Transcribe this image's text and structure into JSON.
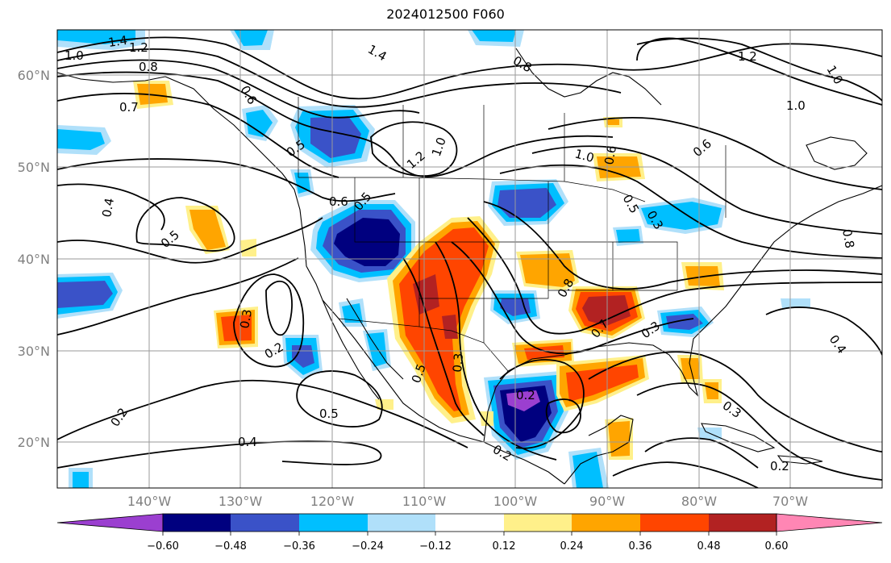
{
  "title": "2024012500 F060",
  "colors": {
    "below_m060": "#9b3fd0",
    "m060_m048": "#00007f",
    "m048_m036": "#3a52c8",
    "m036_m024": "#00bfff",
    "m024_m012": "#b0e0fa",
    "m012_p012": "#ffffff",
    "p012_p024": "#fff08a",
    "p024_p036": "#ffa500",
    "p036_p048": "#ff4500",
    "p048_p060": "#b22222",
    "above_p060": "#ff86b4"
  },
  "latitude_labels": [
    "60°N",
    "50°N",
    "40°N",
    "30°N",
    "20°N"
  ],
  "longitude_labels": [
    "140°W",
    "130°W",
    "120°W",
    "110°W",
    "100°W",
    "90°W",
    "80°W",
    "70°W"
  ],
  "colorbar_labels": [
    "−0.60",
    "−0.48",
    "−0.36",
    "−0.24",
    "−0.12",
    "0.12",
    "0.24",
    "0.36",
    "0.48",
    "0.60"
  ],
  "contour_labels": [
    "1.0",
    "1.4",
    "1.2",
    "0.8",
    "0.8",
    "1.4",
    "0.6",
    "0.7",
    "0.5",
    "0.6",
    "0.5",
    "1.2",
    "1.0",
    "0.4",
    "0.5",
    "1.0",
    "1.0",
    "1.2",
    "1.0",
    "0.6",
    "0.6",
    "0.5",
    "0.3",
    "0.8",
    "0.8",
    "0.3",
    "0.2",
    "0.5",
    "0.3",
    "0.7",
    "0.3",
    "0.5",
    "0.2",
    "0.3",
    "0.2",
    "0.4",
    "0.2",
    "0.4",
    "0.2"
  ]
}
